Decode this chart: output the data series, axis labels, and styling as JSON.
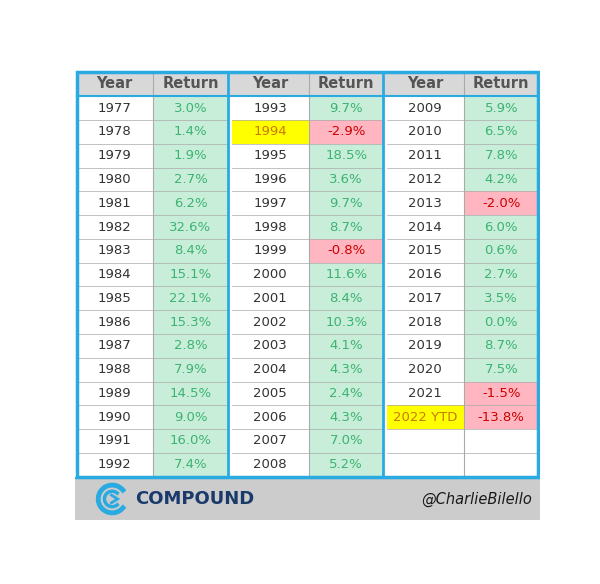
{
  "col1": [
    {
      "year": "1977",
      "return": "3.0%",
      "year_bg": "#ffffff",
      "return_bg": "#c8eeda",
      "return_color": "#3cb371",
      "year_color": "#333333"
    },
    {
      "year": "1978",
      "return": "1.4%",
      "year_bg": "#ffffff",
      "return_bg": "#c8eeda",
      "return_color": "#3cb371",
      "year_color": "#333333"
    },
    {
      "year": "1979",
      "return": "1.9%",
      "year_bg": "#ffffff",
      "return_bg": "#c8eeda",
      "return_color": "#3cb371",
      "year_color": "#333333"
    },
    {
      "year": "1980",
      "return": "2.7%",
      "year_bg": "#ffffff",
      "return_bg": "#c8eeda",
      "return_color": "#3cb371",
      "year_color": "#333333"
    },
    {
      "year": "1981",
      "return": "6.2%",
      "year_bg": "#ffffff",
      "return_bg": "#c8eeda",
      "return_color": "#3cb371",
      "year_color": "#333333"
    },
    {
      "year": "1982",
      "return": "32.6%",
      "year_bg": "#ffffff",
      "return_bg": "#c8eeda",
      "return_color": "#3cb371",
      "year_color": "#333333"
    },
    {
      "year": "1983",
      "return": "8.4%",
      "year_bg": "#ffffff",
      "return_bg": "#c8eeda",
      "return_color": "#3cb371",
      "year_color": "#333333"
    },
    {
      "year": "1984",
      "return": "15.1%",
      "year_bg": "#ffffff",
      "return_bg": "#c8eeda",
      "return_color": "#3cb371",
      "year_color": "#333333"
    },
    {
      "year": "1985",
      "return": "22.1%",
      "year_bg": "#ffffff",
      "return_bg": "#c8eeda",
      "return_color": "#3cb371",
      "year_color": "#333333"
    },
    {
      "year": "1986",
      "return": "15.3%",
      "year_bg": "#ffffff",
      "return_bg": "#c8eeda",
      "return_color": "#3cb371",
      "year_color": "#333333"
    },
    {
      "year": "1987",
      "return": "2.8%",
      "year_bg": "#ffffff",
      "return_bg": "#c8eeda",
      "return_color": "#3cb371",
      "year_color": "#333333"
    },
    {
      "year": "1988",
      "return": "7.9%",
      "year_bg": "#ffffff",
      "return_bg": "#c8eeda",
      "return_color": "#3cb371",
      "year_color": "#333333"
    },
    {
      "year": "1989",
      "return": "14.5%",
      "year_bg": "#ffffff",
      "return_bg": "#c8eeda",
      "return_color": "#3cb371",
      "year_color": "#333333"
    },
    {
      "year": "1990",
      "return": "9.0%",
      "year_bg": "#ffffff",
      "return_bg": "#c8eeda",
      "return_color": "#3cb371",
      "year_color": "#333333"
    },
    {
      "year": "1991",
      "return": "16.0%",
      "year_bg": "#ffffff",
      "return_bg": "#c8eeda",
      "return_color": "#3cb371",
      "year_color": "#333333"
    },
    {
      "year": "1992",
      "return": "7.4%",
      "year_bg": "#ffffff",
      "return_bg": "#c8eeda",
      "return_color": "#3cb371",
      "year_color": "#333333"
    }
  ],
  "col2": [
    {
      "year": "1993",
      "return": "9.7%",
      "year_bg": "#ffffff",
      "return_bg": "#c8eeda",
      "return_color": "#3cb371",
      "year_color": "#333333"
    },
    {
      "year": "1994",
      "return": "-2.9%",
      "year_bg": "#ffff00",
      "return_bg": "#ffb6c1",
      "return_color": "#cc0000",
      "year_color": "#cc7700"
    },
    {
      "year": "1995",
      "return": "18.5%",
      "year_bg": "#ffffff",
      "return_bg": "#c8eeda",
      "return_color": "#3cb371",
      "year_color": "#333333"
    },
    {
      "year": "1996",
      "return": "3.6%",
      "year_bg": "#ffffff",
      "return_bg": "#c8eeda",
      "return_color": "#3cb371",
      "year_color": "#333333"
    },
    {
      "year": "1997",
      "return": "9.7%",
      "year_bg": "#ffffff",
      "return_bg": "#c8eeda",
      "return_color": "#3cb371",
      "year_color": "#333333"
    },
    {
      "year": "1998",
      "return": "8.7%",
      "year_bg": "#ffffff",
      "return_bg": "#c8eeda",
      "return_color": "#3cb371",
      "year_color": "#333333"
    },
    {
      "year": "1999",
      "return": "-0.8%",
      "year_bg": "#ffffff",
      "return_bg": "#ffb6c1",
      "return_color": "#cc0000",
      "year_color": "#333333"
    },
    {
      "year": "2000",
      "return": "11.6%",
      "year_bg": "#ffffff",
      "return_bg": "#c8eeda",
      "return_color": "#3cb371",
      "year_color": "#333333"
    },
    {
      "year": "2001",
      "return": "8.4%",
      "year_bg": "#ffffff",
      "return_bg": "#c8eeda",
      "return_color": "#3cb371",
      "year_color": "#333333"
    },
    {
      "year": "2002",
      "return": "10.3%",
      "year_bg": "#ffffff",
      "return_bg": "#c8eeda",
      "return_color": "#3cb371",
      "year_color": "#333333"
    },
    {
      "year": "2003",
      "return": "4.1%",
      "year_bg": "#ffffff",
      "return_bg": "#c8eeda",
      "return_color": "#3cb371",
      "year_color": "#333333"
    },
    {
      "year": "2004",
      "return": "4.3%",
      "year_bg": "#ffffff",
      "return_bg": "#c8eeda",
      "return_color": "#3cb371",
      "year_color": "#333333"
    },
    {
      "year": "2005",
      "return": "2.4%",
      "year_bg": "#ffffff",
      "return_bg": "#c8eeda",
      "return_color": "#3cb371",
      "year_color": "#333333"
    },
    {
      "year": "2006",
      "return": "4.3%",
      "year_bg": "#ffffff",
      "return_bg": "#c8eeda",
      "return_color": "#3cb371",
      "year_color": "#333333"
    },
    {
      "year": "2007",
      "return": "7.0%",
      "year_bg": "#ffffff",
      "return_bg": "#c8eeda",
      "return_color": "#3cb371",
      "year_color": "#333333"
    },
    {
      "year": "2008",
      "return": "5.2%",
      "year_bg": "#ffffff",
      "return_bg": "#c8eeda",
      "return_color": "#3cb371",
      "year_color": "#333333"
    }
  ],
  "col3": [
    {
      "year": "2009",
      "return": "5.9%",
      "year_bg": "#ffffff",
      "return_bg": "#c8eeda",
      "return_color": "#3cb371",
      "year_color": "#333333"
    },
    {
      "year": "2010",
      "return": "6.5%",
      "year_bg": "#ffffff",
      "return_bg": "#c8eeda",
      "return_color": "#3cb371",
      "year_color": "#333333"
    },
    {
      "year": "2011",
      "return": "7.8%",
      "year_bg": "#ffffff",
      "return_bg": "#c8eeda",
      "return_color": "#3cb371",
      "year_color": "#333333"
    },
    {
      "year": "2012",
      "return": "4.2%",
      "year_bg": "#ffffff",
      "return_bg": "#c8eeda",
      "return_color": "#3cb371",
      "year_color": "#333333"
    },
    {
      "year": "2013",
      "return": "-2.0%",
      "year_bg": "#ffffff",
      "return_bg": "#ffb6c1",
      "return_color": "#cc0000",
      "year_color": "#333333"
    },
    {
      "year": "2014",
      "return": "6.0%",
      "year_bg": "#ffffff",
      "return_bg": "#c8eeda",
      "return_color": "#3cb371",
      "year_color": "#333333"
    },
    {
      "year": "2015",
      "return": "0.6%",
      "year_bg": "#ffffff",
      "return_bg": "#c8eeda",
      "return_color": "#3cb371",
      "year_color": "#333333"
    },
    {
      "year": "2016",
      "return": "2.7%",
      "year_bg": "#ffffff",
      "return_bg": "#c8eeda",
      "return_color": "#3cb371",
      "year_color": "#333333"
    },
    {
      "year": "2017",
      "return": "3.5%",
      "year_bg": "#ffffff",
      "return_bg": "#c8eeda",
      "return_color": "#3cb371",
      "year_color": "#333333"
    },
    {
      "year": "2018",
      "return": "0.0%",
      "year_bg": "#ffffff",
      "return_bg": "#c8eeda",
      "return_color": "#3cb371",
      "year_color": "#333333"
    },
    {
      "year": "2019",
      "return": "8.7%",
      "year_bg": "#ffffff",
      "return_bg": "#c8eeda",
      "return_color": "#3cb371",
      "year_color": "#333333"
    },
    {
      "year": "2020",
      "return": "7.5%",
      "year_bg": "#ffffff",
      "return_bg": "#c8eeda",
      "return_color": "#3cb371",
      "year_color": "#333333"
    },
    {
      "year": "2021",
      "return": "-1.5%",
      "year_bg": "#ffffff",
      "return_bg": "#ffb6c1",
      "return_color": "#cc0000",
      "year_color": "#333333"
    },
    {
      "year": "2022 YTD",
      "return": "-13.8%",
      "year_bg": "#ffff00",
      "return_bg": "#ffb6c1",
      "return_color": "#cc0000",
      "year_color": "#cc7700"
    }
  ],
  "header_bg": "#d8d8d8",
  "header_text_color": "#555555",
  "outer_border_color": "#29aae1",
  "inner_border_color": "#aaaaaa",
  "footer_bg": "#cccccc",
  "logo_text": "COMPOUND",
  "credit_text": "@CharlieBilello",
  "n_rows_max": 16,
  "n_rows_col3": 14
}
